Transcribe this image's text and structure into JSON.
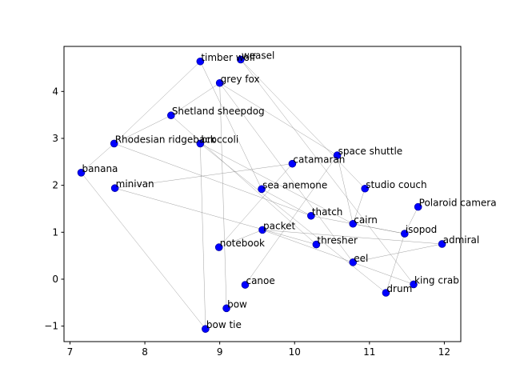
{
  "chart_data": {
    "type": "scatter",
    "title": "",
    "xlabel": "",
    "ylabel": "",
    "xlim": [
      6.92,
      12.22
    ],
    "ylim": [
      -1.33,
      4.96
    ],
    "xticks": [
      7,
      8,
      9,
      10,
      11,
      12
    ],
    "yticks": [
      -1,
      0,
      1,
      2,
      3,
      4
    ],
    "xtick_labels": [
      "7",
      "8",
      "9",
      "10",
      "11",
      "12"
    ],
    "ytick_labels": [
      "−1",
      "0",
      "1",
      "2",
      "3",
      "4"
    ],
    "grid": false,
    "point_color": "#0000ff",
    "edge_color": "#808080",
    "points": [
      {
        "label": "timber wolf",
        "x": 8.74,
        "y": 4.64
      },
      {
        "label": "weasel",
        "x": 9.28,
        "y": 4.68
      },
      {
        "label": "grey fox",
        "x": 9.0,
        "y": 4.18
      },
      {
        "label": "Shetland sheepdog",
        "x": 8.35,
        "y": 3.49
      },
      {
        "label": "Rhodesian ridgeback",
        "x": 7.59,
        "y": 2.89
      },
      {
        "label": "broccoli",
        "x": 8.74,
        "y": 2.89
      },
      {
        "label": "banana",
        "x": 7.15,
        "y": 2.27
      },
      {
        "label": "minivan",
        "x": 7.6,
        "y": 1.94
      },
      {
        "label": "catamaran",
        "x": 9.97,
        "y": 2.46
      },
      {
        "label": "space shuttle",
        "x": 10.57,
        "y": 2.64
      },
      {
        "label": "sea anemone",
        "x": 9.56,
        "y": 1.92
      },
      {
        "label": "studio couch",
        "x": 10.94,
        "y": 1.93
      },
      {
        "label": "Polaroid camera",
        "x": 11.65,
        "y": 1.54
      },
      {
        "label": "thatch",
        "x": 10.22,
        "y": 1.35
      },
      {
        "label": "cairn",
        "x": 10.78,
        "y": 1.18
      },
      {
        "label": "isopod",
        "x": 11.47,
        "y": 0.97
      },
      {
        "label": "packet",
        "x": 9.57,
        "y": 1.05
      },
      {
        "label": "admiral",
        "x": 11.97,
        "y": 0.75
      },
      {
        "label": "notebook",
        "x": 8.99,
        "y": 0.68
      },
      {
        "label": "thresher",
        "x": 10.29,
        "y": 0.74
      },
      {
        "label": "eel",
        "x": 10.78,
        "y": 0.36
      },
      {
        "label": "canoe",
        "x": 9.34,
        "y": -0.12
      },
      {
        "label": "king crab",
        "x": 11.59,
        "y": -0.11
      },
      {
        "label": "drum",
        "x": 11.22,
        "y": -0.29
      },
      {
        "label": "bow",
        "x": 9.09,
        "y": -0.62
      },
      {
        "label": "bow tie",
        "x": 8.81,
        "y": -1.06
      }
    ],
    "edges": [
      [
        "banana",
        "Rhodesian Ridgeback"
      ],
      [
        "banana",
        "bow tie"
      ],
      [
        "Rhodesian ridgeback",
        "timber wolf"
      ],
      [
        "Rhodesian ridgeback",
        "Shetland sheepdog"
      ],
      [
        "Rhodesian ridgeback",
        "thatch"
      ],
      [
        "timber wolf",
        "sea anemone"
      ],
      [
        "Shetland sheepdog",
        "grey fox"
      ],
      [
        "Shetland sheepdog",
        "thresher"
      ],
      [
        "weasel",
        "studio couch"
      ],
      [
        "weasel",
        "king crab"
      ],
      [
        "grey fox",
        "space shuttle"
      ],
      [
        "grey fox",
        "eel"
      ],
      [
        "grey fox",
        "bow"
      ],
      [
        "broccoli",
        "bow tie"
      ],
      [
        "broccoli",
        "drum"
      ],
      [
        "broccoli",
        "cairn"
      ],
      [
        "minivan",
        "catamaran"
      ],
      [
        "minivan",
        "thresher"
      ],
      [
        "space shuttle",
        "canoe"
      ],
      [
        "space shuttle",
        "cairn"
      ],
      [
        "sea anemone",
        "thatch"
      ],
      [
        "studio couch",
        "cairn"
      ],
      [
        "Polaroid camera",
        "isopod"
      ],
      [
        "cairn",
        "isopod"
      ],
      [
        "thatch",
        "isopod"
      ],
      [
        "packet",
        "notebook"
      ],
      [
        "packet",
        "admiral"
      ],
      [
        "packet",
        "king crab"
      ],
      [
        "catamaran",
        "notebook"
      ],
      [
        "eel",
        "admiral"
      ],
      [
        "isopod",
        "drum"
      ]
    ]
  }
}
